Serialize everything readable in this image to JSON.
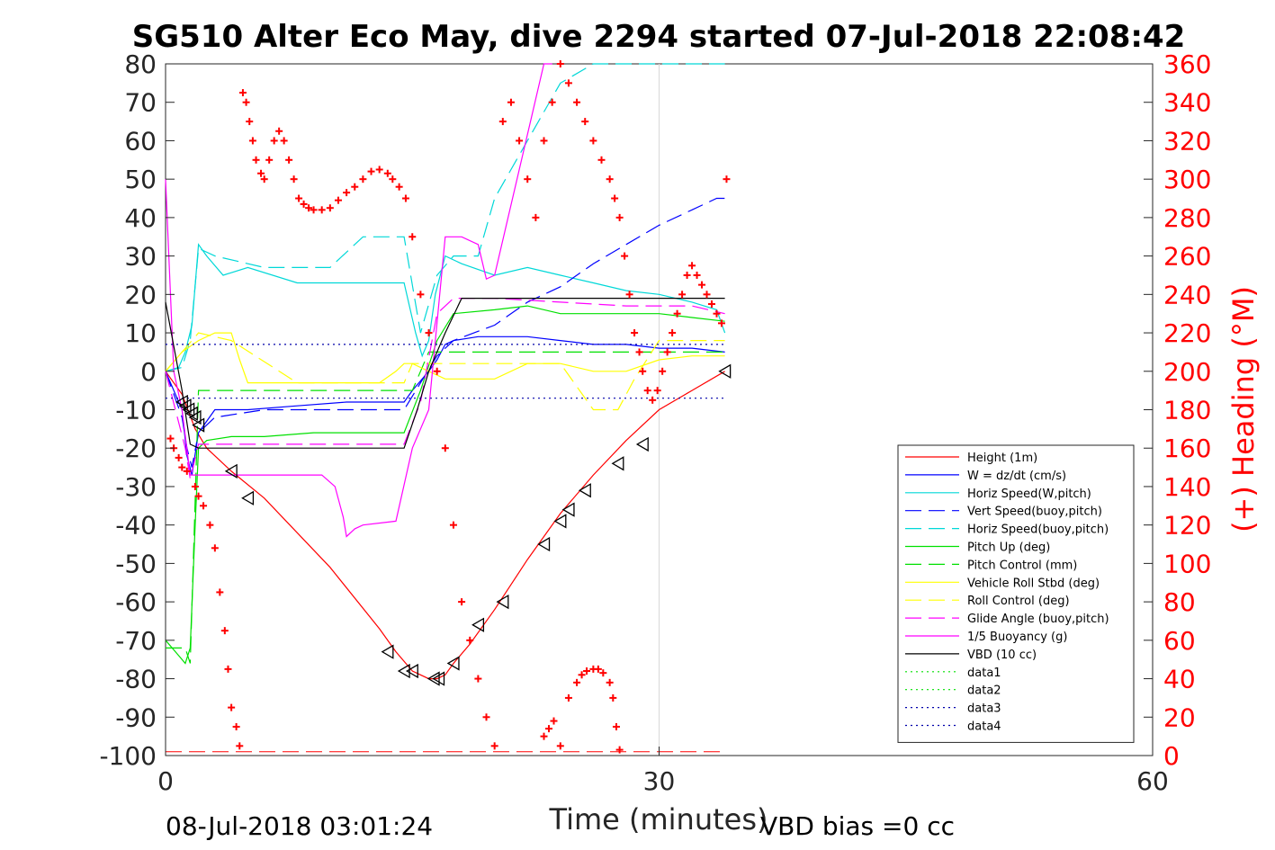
{
  "chart_data": {
    "type": "line",
    "title": "SG510 Alter Eco May, dive 2294 started 07-Jul-2018 22:08:42",
    "xlabel": "Time (minutes)",
    "ylabel": "",
    "y2label": "(+) Heading (°M)",
    "footer_left": "08-Jul-2018 03:01:24",
    "footer_right": "VBD bias =0 cc",
    "xlim": [
      0,
      60
    ],
    "ylim": [
      -100,
      80
    ],
    "y2lim": [
      0,
      360
    ],
    "xticks": [
      0,
      30,
      60
    ],
    "yticks": [
      80,
      70,
      60,
      50,
      40,
      30,
      20,
      10,
      0,
      -10,
      -20,
      -30,
      -40,
      -50,
      -60,
      -70,
      -80,
      -90,
      -100
    ],
    "y2ticks": [
      360,
      340,
      320,
      300,
      280,
      260,
      240,
      220,
      200,
      180,
      160,
      140,
      120,
      100,
      80,
      60,
      40,
      20,
      0
    ],
    "grid": "x-only",
    "legend_position": "lower-right",
    "series": [
      {
        "name": "Height (1m)",
        "color": "#ff0000",
        "style": "solid",
        "x": [
          0.0,
          1.0,
          1.8,
          2.5,
          4.0,
          6.0,
          10.0,
          13.0,
          14.0,
          15.0,
          15.5,
          16.0,
          16.5,
          17.0,
          17.5,
          18.5,
          20.0,
          22.0,
          24.0,
          26.0,
          28.0,
          30.0,
          32.0,
          34.0
        ],
        "y": [
          0,
          -6,
          -15,
          -20,
          -26,
          -33,
          -51,
          -67,
          -73,
          -78,
          -79,
          -80,
          -80,
          -79,
          -76,
          -71,
          -62,
          -49,
          -37,
          -27,
          -18,
          -10,
          -5,
          0
        ]
      },
      {
        "name": "W = dz/dt (cm/s)",
        "color": "#0000ff",
        "style": "solid",
        "x": [
          0.0,
          1.0,
          1.3,
          1.6,
          2.0,
          3.0,
          5.0,
          8.0,
          11.0,
          13.0,
          14.5,
          15.0,
          16.0,
          16.5,
          17.0,
          17.5,
          19.0,
          22.0,
          24.0,
          26.0,
          28.0,
          30.0,
          32.0,
          34.0
        ],
        "y": [
          0,
          -10,
          -22,
          -27,
          -16,
          -10,
          -10,
          -9,
          -8,
          -8,
          -8,
          -5,
          0,
          3,
          7,
          8,
          9,
          9,
          8,
          7,
          7,
          6,
          6,
          5
        ]
      },
      {
        "name": "Horiz Speed(W,pitch)",
        "color": "#00d8d8",
        "style": "solid",
        "x": [
          0.0,
          0.8,
          1.2,
          1.6,
          2.0,
          2.5,
          3.5,
          5.0,
          8.0,
          11.0,
          13.0,
          14.5,
          15.2,
          15.6,
          16.0,
          16.4,
          17.0,
          18.0,
          20.0,
          22.0,
          24.0,
          26.0,
          28.0,
          30.0,
          32.0,
          33.5,
          34.0
        ],
        "y": [
          0,
          1,
          5,
          12,
          33,
          30,
          25,
          27,
          23,
          23,
          23,
          23,
          10,
          4,
          8,
          20,
          30,
          28,
          25,
          27,
          25,
          23,
          21,
          20,
          18,
          16,
          10
        ]
      },
      {
        "name": "Vert Speed(buoy,pitch)",
        "color": "#0000ff",
        "style": "dashed",
        "x": [
          0.0,
          1.0,
          1.3,
          1.6,
          2.0,
          3.0,
          6.0,
          10.0,
          13.0,
          14.5,
          15.5,
          16.5,
          17.5,
          20.0,
          22.0,
          24.0,
          26.0,
          28.0,
          30.0,
          32.0,
          33.5,
          34.0
        ],
        "y": [
          0,
          -12,
          -20,
          -25,
          -16,
          -12,
          -10,
          -10,
          -10,
          -10,
          -3,
          4,
          8,
          12,
          18,
          22,
          28,
          33,
          38,
          42,
          45,
          45
        ]
      },
      {
        "name": "Horiz Speed(buoy,pitch)",
        "color": "#00d8d8",
        "style": "dashed",
        "x": [
          0.0,
          1.0,
          1.5,
          2.0,
          3.0,
          6.0,
          10.0,
          12.0,
          14.5,
          15.5,
          16.5,
          17.5,
          19.0,
          20.0,
          22.0,
          24.0,
          26.0,
          28.0,
          30.0,
          32.0,
          33.5,
          34.0
        ],
        "y": [
          0,
          1,
          8,
          32,
          30,
          27,
          27,
          35,
          35,
          10,
          25,
          30,
          30,
          45,
          60,
          75,
          80,
          80,
          80,
          80,
          80,
          80
        ]
      },
      {
        "name": "Pitch Up (deg)",
        "color": "#00e000",
        "style": "solid",
        "x": [
          0.0,
          0.8,
          1.2,
          1.5,
          1.8,
          2.0,
          2.5,
          4.0,
          6.0,
          9.0,
          12.0,
          14.5,
          15.5,
          16.5,
          17.5,
          20.0,
          22.0,
          24.0,
          26.0,
          28.0,
          30.0,
          32.0,
          34.0
        ],
        "y": [
          -70,
          -74,
          -76,
          -72,
          -40,
          -20,
          -18,
          -17,
          -17,
          -16,
          -16,
          -16,
          -5,
          8,
          15,
          16,
          17,
          15,
          15,
          15,
          15,
          14,
          13
        ]
      },
      {
        "name": "Pitch Control (mm)",
        "color": "#00e000",
        "style": "dashed",
        "x": [
          0.0,
          1.2,
          1.5,
          2.0,
          4.0,
          8.0,
          12.0,
          14.5,
          15.0,
          16.0,
          17.0,
          20.0,
          25.0,
          30.0,
          34.0
        ],
        "y": [
          -72,
          -72,
          -76,
          -5,
          -5,
          -5,
          -5,
          -5,
          -5,
          5,
          5,
          5,
          5,
          5,
          5
        ]
      },
      {
        "name": "Vehicle Roll Stbd (deg)",
        "color": "#ffff00",
        "style": "solid",
        "x": [
          0.0,
          1.0,
          2.0,
          3.0,
          4.0,
          4.5,
          5.0,
          7.0,
          10.0,
          13.0,
          14.0,
          14.5,
          15.0,
          16.0,
          17.0,
          20.0,
          22.0,
          24.0,
          26.0,
          28.0,
          30.0,
          32.0,
          34.0
        ],
        "y": [
          0,
          5,
          8,
          10,
          10,
          3,
          -3,
          -3,
          -3,
          -3,
          0,
          2,
          2,
          0,
          -2,
          -2,
          2,
          2,
          0,
          0,
          3,
          4,
          4
        ]
      },
      {
        "name": "Roll Control (deg)",
        "color": "#ffff00",
        "style": "dashed",
        "x": [
          0.0,
          1.0,
          2.0,
          4.0,
          8.0,
          12.0,
          14.5,
          15.0,
          17.0,
          20.0,
          24.0,
          26.0,
          27.5,
          28.5,
          30.0,
          32.0,
          34.0
        ],
        "y": [
          0,
          5,
          10,
          8,
          -3,
          -3,
          -3,
          2,
          2,
          2,
          2,
          -10,
          -10,
          -2,
          8,
          8,
          8
        ]
      },
      {
        "name": "Glide Angle (buoy,pitch)",
        "color": "#ff00ff",
        "style": "dashed",
        "x": [
          0.0,
          1.2,
          1.5,
          2.0,
          4.0,
          8.0,
          12.0,
          14.5,
          15.5,
          16.5,
          17.5,
          20.0,
          24.0,
          28.0,
          32.0,
          34.0
        ],
        "y": [
          0,
          -20,
          -28,
          -19,
          -19,
          -19,
          -19,
          -19,
          -8,
          15,
          19,
          19,
          18,
          17,
          17,
          15
        ]
      },
      {
        "name": "1/5 Buoyancy (g)",
        "color": "#ff00ff",
        "style": "solid",
        "x": [
          0.0,
          0.5,
          1.0,
          1.5,
          2.0,
          3.0,
          6.0,
          9.5,
          10.3,
          10.8,
          11.0,
          11.5,
          12.0,
          14.0,
          15.0,
          16.0,
          17.0,
          18.0,
          19.0,
          19.5,
          20.0,
          23.0,
          23.5
        ],
        "y": [
          50,
          0,
          -10,
          -27,
          -27,
          -27,
          -27,
          -27,
          -30,
          -38,
          -43,
          -41,
          -40,
          -39,
          -20,
          -10,
          35,
          35,
          33,
          24,
          25,
          80,
          80
        ]
      },
      {
        "name": "VBD (10 cc)",
        "color": "#000000",
        "style": "solid",
        "x": [
          0.0,
          1.0,
          1.5,
          2.0,
          5.0,
          10.0,
          14.5,
          15.3,
          16.0,
          17.0,
          18.0,
          25.0,
          30.0,
          34.0
        ],
        "y": [
          18,
          -5,
          -19,
          -20,
          -20,
          -20,
          -20,
          -10,
          0,
          10,
          19,
          19,
          19,
          19
        ]
      },
      {
        "name": "data1",
        "color": "#00e000",
        "style": "dotted",
        "x": [],
        "y": []
      },
      {
        "name": "data2",
        "color": "#00e000",
        "style": "dotted",
        "x": [],
        "y": []
      },
      {
        "name": "data3",
        "color": "#0000aa",
        "style": "dotted",
        "x": [
          0.0,
          34.0
        ],
        "y": [
          7,
          7
        ]
      },
      {
        "name": "data4",
        "color": "#0000aa",
        "style": "dotted",
        "x": [
          0.0,
          34.0
        ],
        "y": [
          -7,
          -7
        ]
      }
    ],
    "heading": {
      "axis": "right",
      "color": "#ff0000",
      "marker": "+",
      "x": [
        0.3,
        0.5,
        0.8,
        1.0,
        1.3,
        1.8,
        2.0,
        2.3,
        2.7,
        3.0,
        3.3,
        3.6,
        3.8,
        4.0,
        4.3,
        4.5,
        4.7,
        4.9,
        5.1,
        5.3,
        5.5,
        5.8,
        6.0,
        6.3,
        6.6,
        6.9,
        7.2,
        7.5,
        7.8,
        8.1,
        8.4,
        8.7,
        9.0,
        9.5,
        10.0,
        10.5,
        11.0,
        11.5,
        12.0,
        12.5,
        13.0,
        13.5,
        13.8,
        14.2,
        14.6,
        15.0,
        15.5,
        16.0,
        16.5,
        17.0,
        17.5,
        18.0,
        18.5,
        19.0,
        19.5,
        20.0,
        20.5,
        21.0,
        21.5,
        22.0,
        22.5,
        23.0,
        23.5,
        24.0,
        24.5,
        25.0,
        25.5,
        26.0,
        26.5,
        27.0,
        27.3,
        27.6,
        27.9,
        28.2,
        28.5,
        28.8,
        29.0,
        29.3,
        29.6,
        29.9,
        30.2,
        30.5,
        30.8,
        31.1,
        31.4,
        31.7,
        32.0,
        32.3,
        32.6,
        32.9,
        33.2,
        33.5,
        33.8,
        34.1
      ],
      "y": [
        165,
        160,
        155,
        150,
        148,
        140,
        135,
        130,
        120,
        108,
        85,
        65,
        45,
        25,
        15,
        5,
        345,
        340,
        330,
        320,
        310,
        303,
        300,
        310,
        320,
        325,
        320,
        310,
        300,
        290,
        287,
        285,
        284,
        284,
        285,
        289,
        293,
        296,
        300,
        304,
        305,
        303,
        300,
        296,
        290,
        270,
        240,
        220,
        200,
        160,
        120,
        80,
        60,
        40,
        20,
        5,
        330,
        340,
        320,
        300,
        280,
        320,
        340,
        360,
        350,
        340,
        330,
        320,
        310,
        300,
        290,
        280,
        260,
        240,
        220,
        210,
        200,
        190,
        185,
        190,
        200,
        210,
        220,
        230,
        240,
        250,
        255,
        250,
        245,
        240,
        235,
        230,
        225,
        300
      ]
    },
    "heading_low_hump": {
      "x": [
        23.0,
        23.3,
        23.6,
        24.0,
        24.5,
        25.0,
        25.3,
        25.6,
        26.0,
        26.3,
        26.6,
        27.0,
        27.2,
        27.4,
        27.6
      ],
      "y": [
        10,
        14,
        18,
        5,
        30,
        38,
        42,
        44,
        45,
        45,
        43,
        38,
        30,
        15,
        3
      ]
    },
    "markers": {
      "shape": "triangle-left",
      "color": "#000000",
      "x": [
        1.0,
        1.2,
        1.4,
        1.6,
        1.8,
        2.0,
        4.0,
        5.0,
        13.5,
        14.5,
        15.0,
        16.3,
        16.6,
        17.5,
        19.0,
        20.5,
        23.0,
        24.0,
        24.5,
        25.5,
        27.5,
        29.0,
        34.0
      ],
      "y": [
        -8,
        -9,
        -10,
        -11,
        -12,
        -14,
        -26,
        -33,
        -73,
        -78,
        -78,
        -80,
        -80,
        -76,
        -66,
        -60,
        -45,
        -39,
        -36,
        -31,
        -24,
        -19,
        0
      ]
    },
    "baseline_dashed_y": -99
  }
}
